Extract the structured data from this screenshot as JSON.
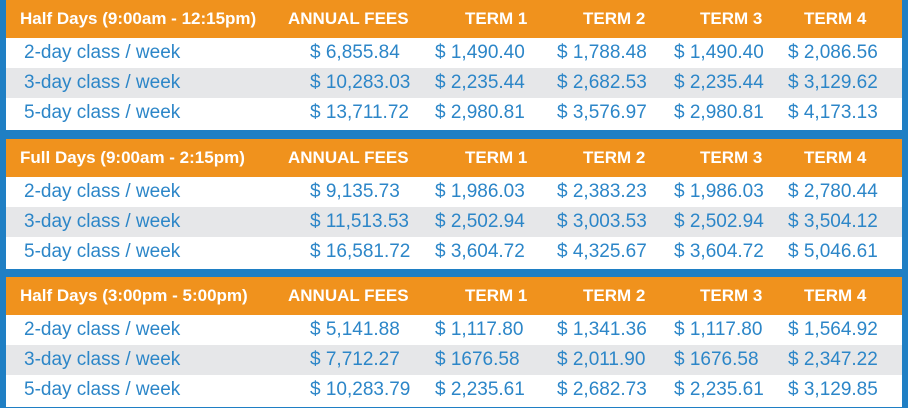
{
  "colors": {
    "header_bg": "#f0921d",
    "border_blue": "#1f7fc4",
    "text_blue": "#2c86c8",
    "alt_row": "#e6e7e9"
  },
  "sections": [
    {
      "title": "Half Days (9:00am - 12:15pm)",
      "headers": [
        "ANNUAL FEES",
        "TERM 1",
        "TERM 2",
        "TERM 3",
        "TERM 4"
      ],
      "rows": [
        [
          "2-day class / week",
          "$  6,855.84",
          "$ 1,490.40",
          "$ 1,788.48",
          "$ 1,490.40",
          "$ 2,086.56"
        ],
        [
          "3-day class / week",
          "$ 10,283.03",
          "$ 2,235.44",
          "$ 2,682.53",
          "$ 2,235.44",
          "$ 3,129.62"
        ],
        [
          "5-day class / week",
          "$ 13,711.72",
          "$ 2,980.81",
          "$ 3,576.97",
          "$ 2,980.81",
          "$ 4,173.13"
        ]
      ]
    },
    {
      "title": "Full Days (9:00am - 2:15pm)",
      "headers": [
        "ANNUAL FEES",
        "TERM 1",
        "TERM 2",
        "TERM 3",
        "TERM 4"
      ],
      "rows": [
        [
          "2-day class / week",
          "$  9,135.73",
          "$ 1,986.03",
          "$ 2,383.23",
          "$ 1,986.03",
          "$ 2,780.44"
        ],
        [
          "3-day class / week",
          "$ 11,513.53",
          "$ 2,502.94",
          "$ 3,003.53",
          "$ 2,502.94",
          "$ 3,504.12"
        ],
        [
          "5-day class / week",
          "$ 16,581.72",
          "$ 3,604.72",
          "$ 4,325.67",
          "$ 3,604.72",
          "$ 5,046.61"
        ]
      ]
    },
    {
      "title": "Half Days (3:00pm - 5:00pm)",
      "headers": [
        "ANNUAL FEES",
        "TERM 1",
        "TERM 2",
        "TERM 3",
        "TERM 4"
      ],
      "rows": [
        [
          "2-day class / week",
          "$  5,141.88",
          "$ 1,117.80",
          "$ 1,341.36",
          "$ 1,117.80",
          "$ 1,564.92"
        ],
        [
          "3-day class / week",
          "$  7,712.27",
          "$ 1676.58",
          "$ 2,011.90",
          "$ 1676.58",
          "$ 2,347.22"
        ],
        [
          "5-day class / week",
          "$ 10,283.79",
          "$ 2,235.61",
          "$ 2,682.73",
          "$ 2,235.61",
          "$ 3,129.85"
        ]
      ]
    }
  ]
}
